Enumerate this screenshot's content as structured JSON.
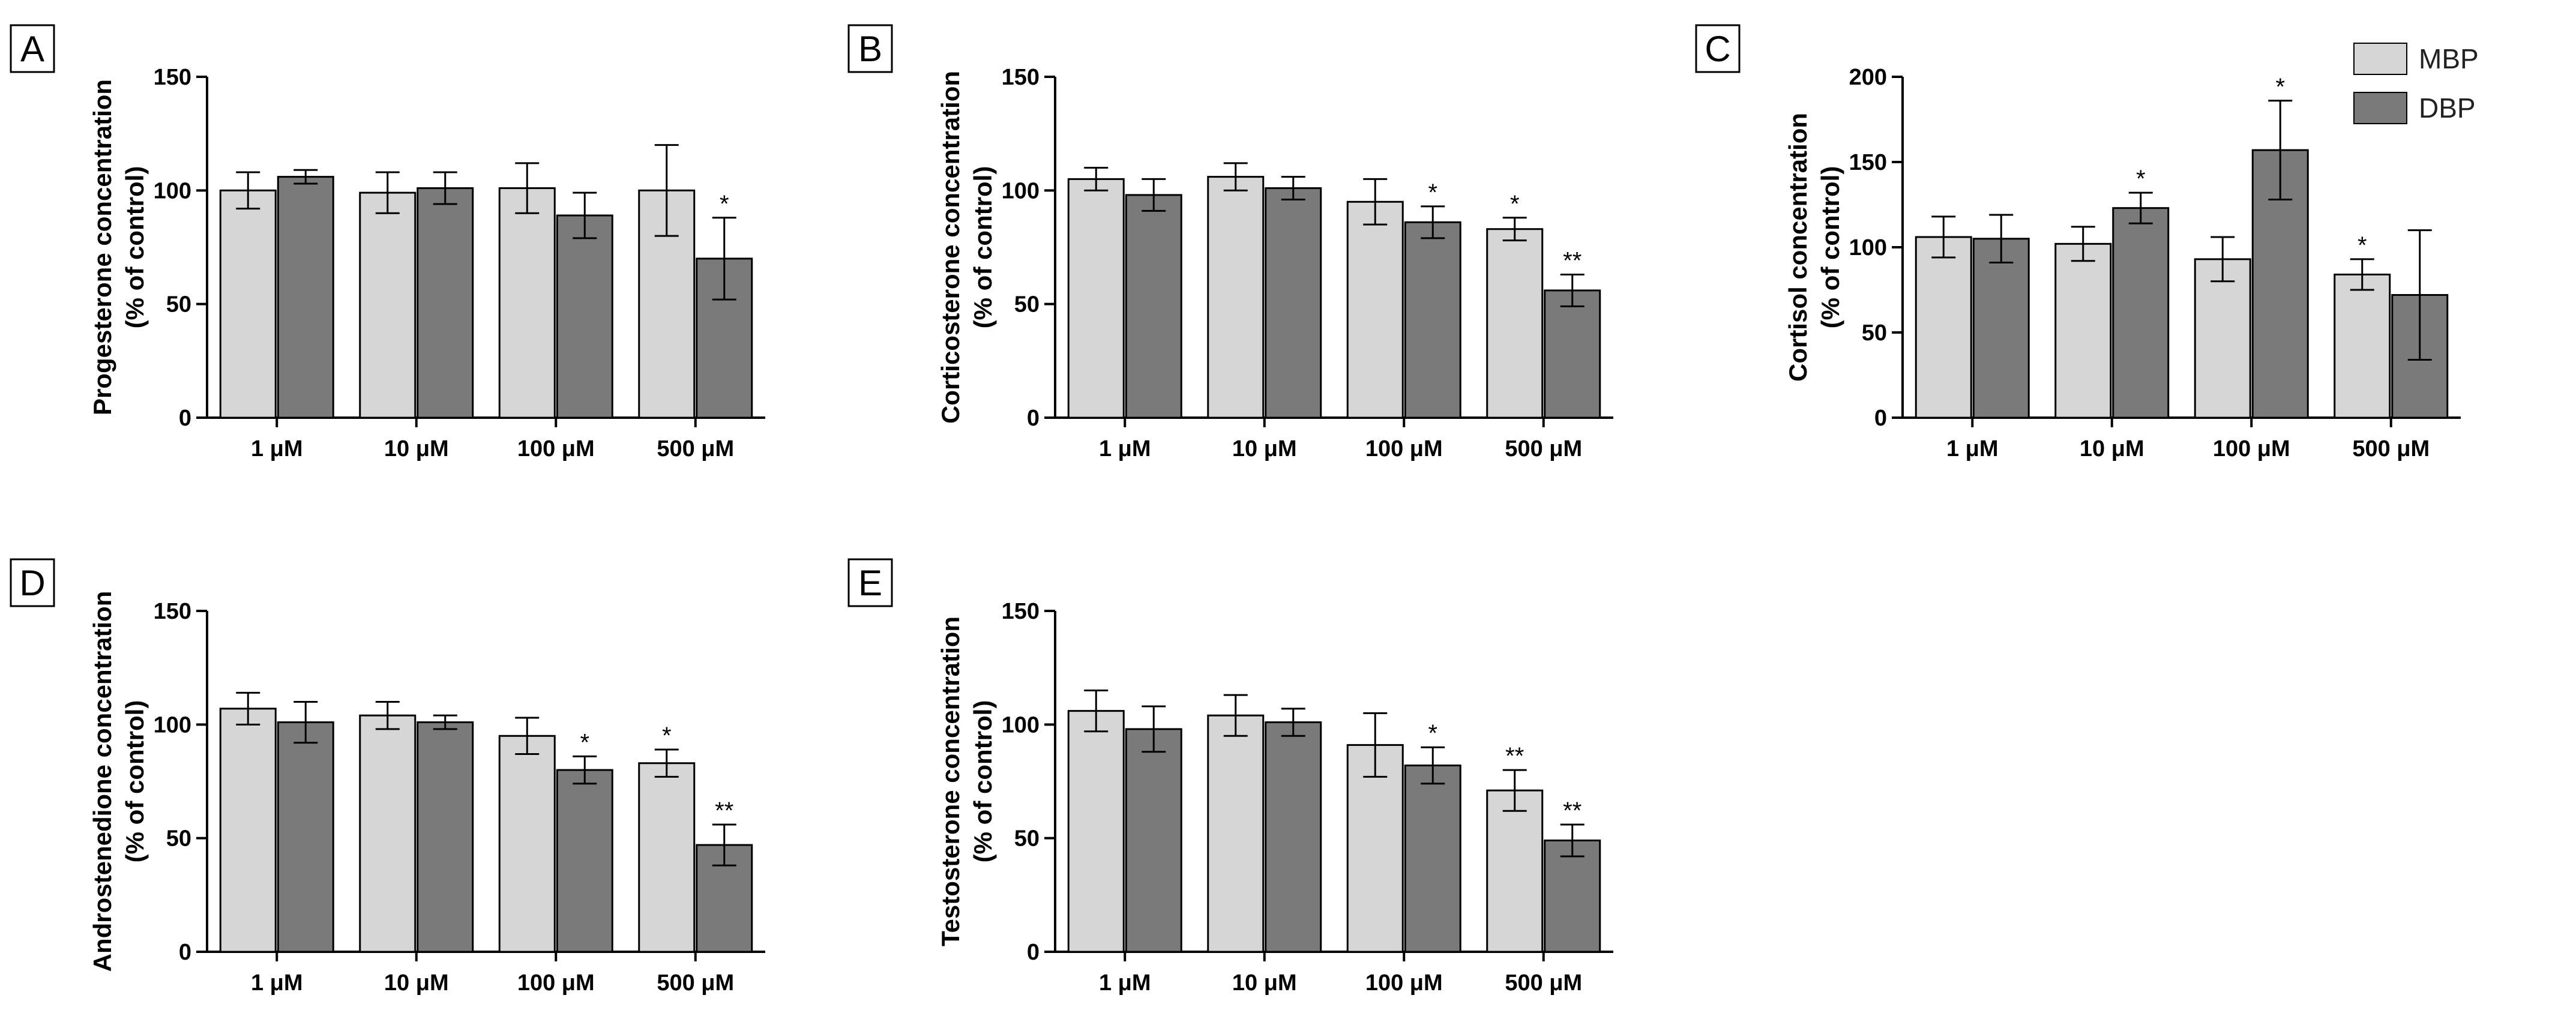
{
  "colors": {
    "MBP": "#d6d6d6",
    "DBP": "#7a7a7a",
    "stroke": "#000000"
  },
  "legend": {
    "position": "top-right",
    "items": [
      {
        "label": "MBP"
      },
      {
        "label": "DBP"
      }
    ]
  },
  "chart_data": [
    {
      "panel": "A",
      "type": "bar",
      "categories": [
        "1 μM",
        "10 μM",
        "100 μM",
        "500 μM"
      ],
      "ylabel_line1": "Progesterone concentration",
      "ylabel_line2": "(% of control)",
      "ylim": [
        0,
        150
      ],
      "yticks": [
        0,
        50,
        100,
        150
      ],
      "series": [
        {
          "name": "MBP",
          "values": [
            100,
            99,
            101,
            100
          ],
          "errors": [
            8,
            9,
            11,
            20
          ],
          "sig": [
            "",
            "",
            "",
            ""
          ]
        },
        {
          "name": "DBP",
          "values": [
            106,
            101,
            89,
            70
          ],
          "errors": [
            3,
            7,
            10,
            18
          ],
          "sig": [
            "",
            "",
            "",
            "*"
          ]
        }
      ]
    },
    {
      "panel": "B",
      "type": "bar",
      "categories": [
        "1 μM",
        "10 μM",
        "100 μM",
        "500 μM"
      ],
      "ylabel_line1": "Corticosterone concentration",
      "ylabel_line2": "(% of control)",
      "ylim": [
        0,
        150
      ],
      "yticks": [
        0,
        50,
        100,
        150
      ],
      "series": [
        {
          "name": "MBP",
          "values": [
            105,
            106,
            95,
            83
          ],
          "errors": [
            5,
            6,
            10,
            5
          ],
          "sig": [
            "",
            "",
            "",
            "*"
          ]
        },
        {
          "name": "DBP",
          "values": [
            98,
            101,
            86,
            56
          ],
          "errors": [
            7,
            5,
            7,
            7
          ],
          "sig": [
            "",
            "",
            "*",
            "**"
          ]
        }
      ]
    },
    {
      "panel": "C",
      "type": "bar",
      "categories": [
        "1 μM",
        "10 μM",
        "100 μM",
        "500 μM"
      ],
      "ylabel_line1": "Cortisol concentration",
      "ylabel_line2": "(% of control)",
      "ylim": [
        0,
        200
      ],
      "yticks": [
        0,
        50,
        100,
        150,
        200
      ],
      "series": [
        {
          "name": "MBP",
          "values": [
            106,
            102,
            93,
            84
          ],
          "errors": [
            12,
            10,
            13,
            9
          ],
          "sig": [
            "",
            "",
            "",
            "*"
          ]
        },
        {
          "name": "DBP",
          "values": [
            105,
            123,
            157,
            72
          ],
          "errors": [
            14,
            9,
            29,
            38
          ],
          "sig": [
            "",
            "*",
            "*",
            ""
          ]
        }
      ]
    },
    {
      "panel": "D",
      "type": "bar",
      "categories": [
        "1 μM",
        "10 μM",
        "100 μM",
        "500 μM"
      ],
      "ylabel_line1": "Androstenedione concentration",
      "ylabel_line2": "(% of control)",
      "ylim": [
        0,
        150
      ],
      "yticks": [
        0,
        50,
        100,
        150
      ],
      "series": [
        {
          "name": "MBP",
          "values": [
            107,
            104,
            95,
            83
          ],
          "errors": [
            7,
            6,
            8,
            6
          ],
          "sig": [
            "",
            "",
            "",
            "*"
          ]
        },
        {
          "name": "DBP",
          "values": [
            101,
            101,
            80,
            47
          ],
          "errors": [
            9,
            3,
            6,
            9
          ],
          "sig": [
            "",
            "",
            "*",
            "**"
          ]
        }
      ]
    },
    {
      "panel": "E",
      "type": "bar",
      "categories": [
        "1 μM",
        "10 μM",
        "100 μM",
        "500 μM"
      ],
      "ylabel_line1": "Testosterone concentration",
      "ylabel_line2": "(% of control)",
      "ylim": [
        0,
        150
      ],
      "yticks": [
        0,
        50,
        100,
        150
      ],
      "series": [
        {
          "name": "MBP",
          "values": [
            106,
            104,
            91,
            71
          ],
          "errors": [
            9,
            9,
            14,
            9
          ],
          "sig": [
            "",
            "",
            "",
            "**"
          ]
        },
        {
          "name": "DBP",
          "values": [
            98,
            101,
            82,
            49
          ],
          "errors": [
            10,
            6,
            8,
            7
          ],
          "sig": [
            "",
            "",
            "*",
            "**"
          ]
        }
      ]
    }
  ]
}
